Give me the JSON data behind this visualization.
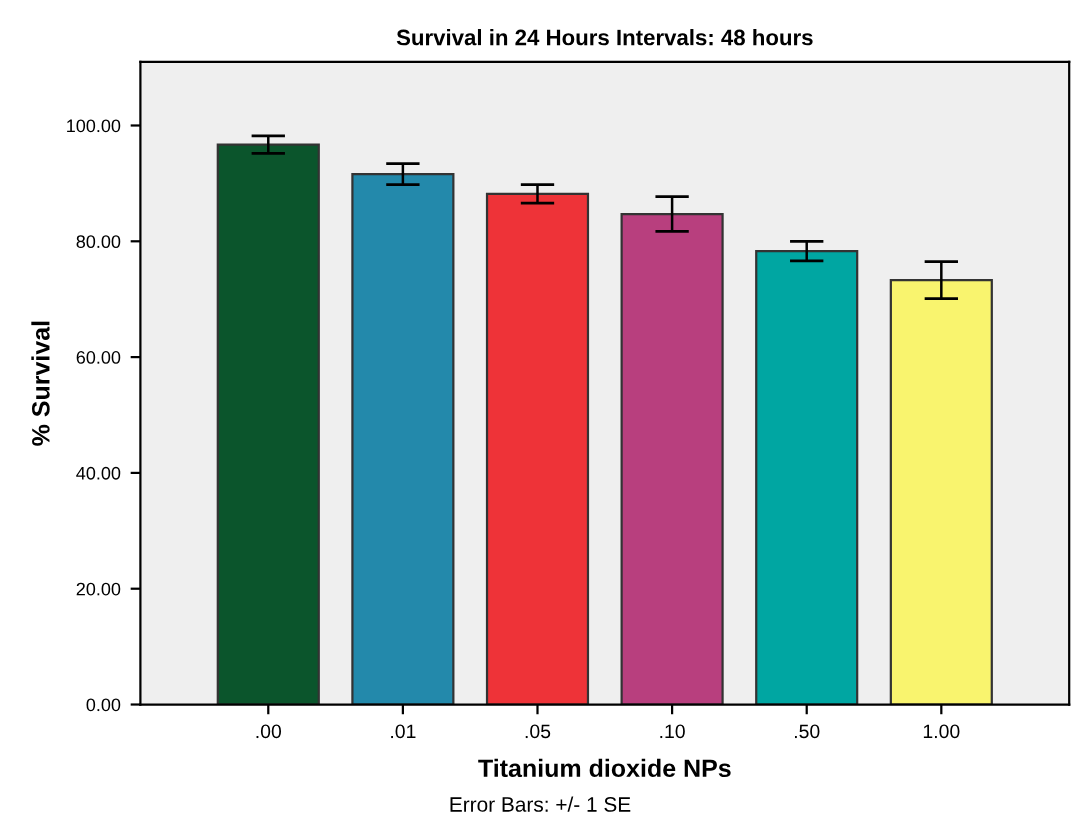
{
  "chart_data": {
    "type": "bar",
    "title": "Survival in 24 Hours Intervals: 48 hours",
    "xlabel": "Titanium dioxide NPs",
    "ylabel": "% Survival",
    "annotations": [
      "Error Bars: +/- 1 SE"
    ],
    "categories": [
      ".00",
      ".01",
      ".05",
      ".10",
      ".50",
      "1.00"
    ],
    "values": [
      96.7,
      91.6,
      88.2,
      84.7,
      78.3,
      73.3
    ],
    "errors": [
      1.5,
      1.8,
      1.6,
      3.0,
      1.7,
      3.2
    ],
    "colors": [
      "#0b552c",
      "#2389ab",
      "#ee3338",
      "#b83f7e",
      "#00a6a2",
      "#f9f46e"
    ],
    "ylim": [
      0,
      111
    ],
    "yticks": [
      {
        "value": 0,
        "label": "0.00"
      },
      {
        "value": 20,
        "label": "20.00"
      },
      {
        "value": 40,
        "label": "40.00"
      },
      {
        "value": 60,
        "label": "60.00"
      },
      {
        "value": 80,
        "label": "80.00"
      },
      {
        "value": 100,
        "label": "100.00"
      }
    ],
    "grid": false
  }
}
